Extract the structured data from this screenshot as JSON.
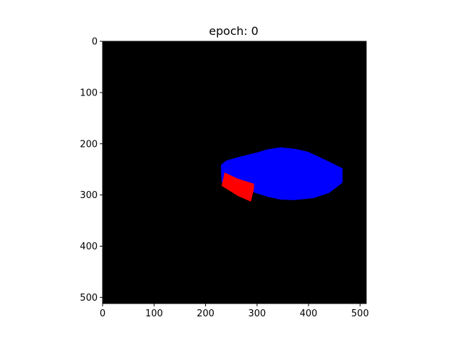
{
  "chart_data": {
    "type": "heatmap",
    "title": "epoch: 0",
    "xlabel": "",
    "ylabel": "",
    "xlim": [
      0,
      512
    ],
    "ylim": [
      512,
      0
    ],
    "xticks": [
      0,
      100,
      200,
      300,
      400,
      500
    ],
    "yticks": [
      0,
      100,
      200,
      300,
      400,
      500
    ],
    "background_color": "#000000",
    "grid": false,
    "regions": [
      {
        "color": "#0000ff",
        "polygon": [
          [
            230,
            241
          ],
          [
            240,
            233
          ],
          [
            260,
            227
          ],
          [
            300,
            217
          ],
          [
            320,
            211
          ],
          [
            345,
            207
          ],
          [
            375,
            210
          ],
          [
            400,
            216
          ],
          [
            440,
            235
          ],
          [
            466,
            248
          ],
          [
            466,
            276
          ],
          [
            440,
            296
          ],
          [
            410,
            306
          ],
          [
            372,
            310
          ],
          [
            345,
            309
          ],
          [
            322,
            304
          ],
          [
            300,
            297
          ],
          [
            270,
            287
          ],
          [
            250,
            281
          ],
          [
            231,
            276
          ],
          [
            230,
            250
          ]
        ]
      },
      {
        "color": "#ff0000",
        "polygon": [
          [
            237,
            256
          ],
          [
            262,
            268
          ],
          [
            294,
            278
          ],
          [
            294,
            288
          ],
          [
            288,
            313
          ],
          [
            263,
            302
          ],
          [
            231,
            282
          ]
        ]
      }
    ]
  }
}
